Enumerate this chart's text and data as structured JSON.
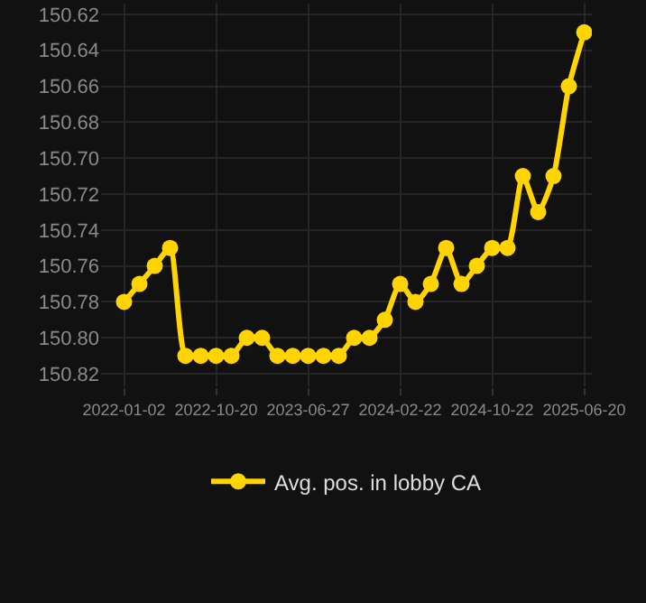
{
  "chart_data": {
    "type": "line",
    "categories": [
      "2022-01-02",
      null,
      null,
      null,
      null,
      null,
      "2022-10-20",
      null,
      null,
      null,
      null,
      null,
      "2023-06-27",
      null,
      null,
      null,
      null,
      null,
      "2024-02-22",
      null,
      null,
      null,
      null,
      null,
      "2024-10-22",
      null,
      null,
      null,
      null,
      null,
      "2025-06-20"
    ],
    "series": [
      {
        "name": "Avg. pos. in lobby CA",
        "color": "#ffd400",
        "values": [
          150.78,
          150.77,
          150.76,
          150.75,
          150.81,
          150.81,
          150.81,
          150.81,
          150.8,
          150.8,
          150.81,
          150.81,
          150.81,
          150.81,
          150.81,
          150.8,
          150.8,
          150.79,
          150.77,
          150.78,
          150.77,
          150.75,
          150.77,
          150.76,
          150.75,
          150.75,
          150.71,
          150.73,
          150.71,
          150.66,
          150.63
        ]
      }
    ],
    "ylim": [
      150.827,
      150.614
    ],
    "yticks": [
      150.62,
      150.64,
      150.66,
      150.68,
      {
        "value": 150.7,
        "label": "150.70"
      },
      150.72,
      150.74,
      150.76,
      150.78,
      {
        "value": 150.8,
        "label": "150.80"
      },
      150.82
    ],
    "grid": true,
    "legend": "bottom",
    "marker": "circle",
    "line_style": "solid"
  }
}
